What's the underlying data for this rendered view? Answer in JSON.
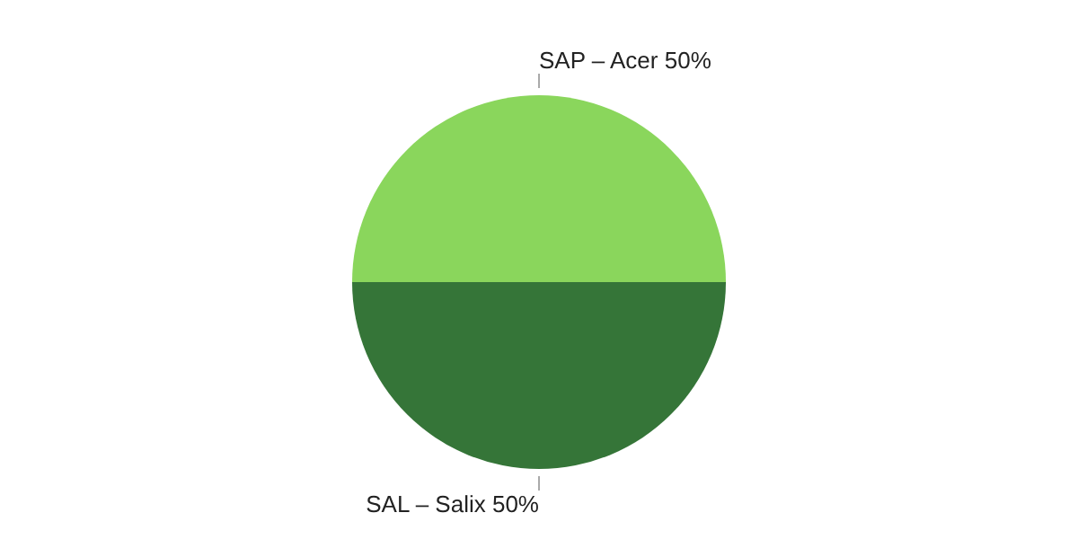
{
  "chart_data": {
    "type": "pie",
    "categories": [
      "SAP – Acer",
      "SAL – Salix"
    ],
    "values": [
      50,
      50
    ],
    "value_labels": [
      "50%",
      "50%"
    ],
    "colors": [
      "#8ad65c",
      "#357538"
    ]
  }
}
